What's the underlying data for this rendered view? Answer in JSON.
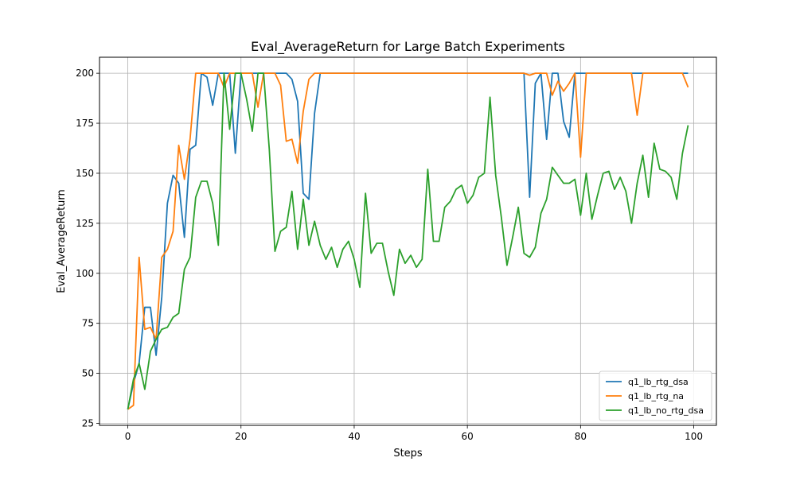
{
  "chart_data": {
    "type": "line",
    "title": "Eval_AverageReturn for Large Batch Experiments",
    "xlabel": "Steps",
    "ylabel": "Eval_AverageReturn",
    "xlim": [
      -5,
      104
    ],
    "ylim": [
      24,
      208
    ],
    "xticks": [
      0,
      20,
      40,
      60,
      80,
      100
    ],
    "yticks": [
      25,
      50,
      75,
      100,
      125,
      150,
      175,
      200
    ],
    "grid": true,
    "legend_position": "lower-right",
    "series": [
      {
        "name": "q1_lb_rtg_dsa",
        "color": "#1f77b4",
        "values": [
          32,
          45,
          55,
          83,
          83,
          59,
          88,
          135,
          149,
          145,
          118,
          162,
          164,
          200,
          198,
          184,
          200,
          200,
          200,
          160,
          200,
          200,
          200,
          200,
          200,
          200,
          200,
          200,
          200,
          197,
          186,
          140,
          137,
          180,
          200,
          200,
          200,
          200,
          200,
          200,
          200,
          200,
          200,
          200,
          200,
          200,
          200,
          200,
          200,
          200,
          200,
          200,
          200,
          200,
          200,
          200,
          200,
          200,
          200,
          200,
          200,
          200,
          200,
          200,
          200,
          200,
          200,
          200,
          200,
          200,
          200,
          138,
          195,
          200,
          167,
          200,
          200,
          176,
          168,
          200,
          200,
          200,
          200,
          200,
          200,
          200,
          200,
          200,
          200,
          200,
          200,
          200,
          200,
          200,
          200,
          200,
          200,
          200,
          200,
          200
        ]
      },
      {
        "name": "q1_lb_rtg_na",
        "color": "#ff7f0e",
        "values": [
          32,
          34,
          108,
          72,
          73,
          67,
          108,
          112,
          121,
          164,
          147,
          167,
          200,
          200,
          200,
          200,
          200,
          193,
          200,
          200,
          200,
          200,
          200,
          183,
          200,
          200,
          200,
          194,
          166,
          167,
          155,
          181,
          197,
          200,
          200,
          200,
          200,
          200,
          200,
          200,
          200,
          200,
          200,
          200,
          200,
          200,
          200,
          200,
          200,
          200,
          200,
          200,
          200,
          200,
          200,
          200,
          200,
          200,
          200,
          200,
          200,
          200,
          200,
          200,
          200,
          200,
          200,
          200,
          200,
          200,
          200,
          199,
          200,
          200,
          200,
          189,
          196,
          191,
          195,
          200,
          158,
          200,
          200,
          200,
          200,
          200,
          200,
          200,
          200,
          200,
          179,
          200,
          200,
          200,
          200,
          200,
          200,
          200,
          200,
          193
        ]
      },
      {
        "name": "q1_lb_no_rtg_dsa",
        "color": "#2ca02c",
        "values": [
          32,
          47,
          55,
          42,
          61,
          67,
          72,
          73,
          78,
          80,
          102,
          108,
          138,
          146,
          146,
          135,
          114,
          200,
          172,
          200,
          200,
          187,
          171,
          200,
          200,
          162,
          111,
          121,
          123,
          141,
          112,
          137,
          114,
          126,
          114,
          107,
          113,
          103,
          112,
          116,
          107,
          93,
          140,
          110,
          115,
          115,
          101,
          89,
          112,
          105,
          109,
          103,
          107,
          152,
          116,
          116,
          133,
          136,
          142,
          144,
          135,
          139,
          148,
          150,
          188,
          149,
          128,
          104,
          118,
          133,
          110,
          108,
          113,
          130,
          137,
          153,
          149,
          145,
          145,
          147,
          129,
          150,
          127,
          139,
          150,
          151,
          142,
          148,
          141,
          125,
          145,
          159,
          138,
          165,
          152,
          151,
          148,
          137,
          160,
          174
        ]
      }
    ]
  }
}
